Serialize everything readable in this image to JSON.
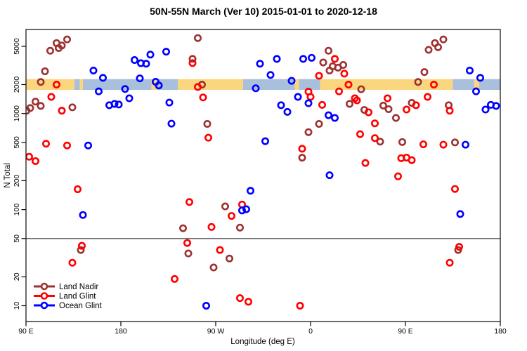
{
  "title": "50N-55N March (Ver 10)   2015-01-01 to 2020-12-18",
  "chart_data": {
    "type": "scatter",
    "title": "50N-55N March (Ver 10)   2015-01-01 to 2020-12-18",
    "xlabel": "Longitude (deg E)",
    "ylabel": "N Total",
    "x_axis": {
      "min": 90,
      "max": 540,
      "ticks": [
        {
          "value": 90,
          "label": "90 E"
        },
        {
          "value": 180,
          "label": "180"
        },
        {
          "value": 270,
          "label": "90 W"
        },
        {
          "value": 360,
          "label": "0"
        },
        {
          "value": 450,
          "label": "90 E"
        },
        {
          "value": 540,
          "label": "180"
        }
      ]
    },
    "y_axis": {
      "scale": "log",
      "min": 7,
      "max": 7500,
      "ticks": [
        10,
        20,
        50,
        100,
        200,
        500,
        1000,
        2000,
        5000
      ]
    },
    "grid": false,
    "legend_position": "bottom-left",
    "reference_line_y": 50,
    "surface_band": {
      "y_center": 2000,
      "y_top": 2280,
      "y_bottom": 1760,
      "land_color": "#FAD67E",
      "ocean_color": "#A9C0DC",
      "segments": [
        {
          "from": 90,
          "to": 136,
          "surface": "land"
        },
        {
          "from": 136,
          "to": 141,
          "surface": "ocean"
        },
        {
          "from": 141,
          "to": 144,
          "surface": "land"
        },
        {
          "from": 144,
          "to": 209,
          "surface": "ocean"
        },
        {
          "from": 209,
          "to": 214,
          "surface": "land"
        },
        {
          "from": 214,
          "to": 234,
          "surface": "ocean"
        },
        {
          "from": 234,
          "to": 296,
          "surface": "land"
        },
        {
          "from": 296,
          "to": 345,
          "surface": "ocean"
        },
        {
          "from": 345,
          "to": 349,
          "surface": "land"
        },
        {
          "from": 349,
          "to": 369,
          "surface": "ocean"
        },
        {
          "from": 369,
          "to": 495,
          "surface": "land"
        },
        {
          "from": 495,
          "to": 515,
          "surface": "ocean"
        },
        {
          "from": 515,
          "to": 520,
          "surface": "land"
        },
        {
          "from": 520,
          "to": 540,
          "surface": "ocean"
        }
      ]
    },
    "series": [
      {
        "name": "Land Nadir",
        "color": "#9E3232",
        "points": [
          [
            113,
            4500
          ],
          [
            119,
            5400
          ],
          [
            124,
            5100
          ],
          [
            129,
            5900
          ],
          [
            121,
            4800
          ],
          [
            108,
            2750
          ],
          [
            104,
            2130
          ],
          [
            99,
            1330
          ],
          [
            104,
            1200
          ],
          [
            94,
            1140
          ],
          [
            90.5,
            1070
          ],
          [
            134,
            1160
          ],
          [
            253,
            6100
          ],
          [
            248,
            3700
          ],
          [
            257,
            2000
          ],
          [
            262,
            780
          ],
          [
            279,
            108
          ],
          [
            293,
            65
          ],
          [
            239,
            64
          ],
          [
            244,
            35
          ],
          [
            283,
            31
          ],
          [
            268,
            25
          ],
          [
            377,
            4500
          ],
          [
            372,
            3400
          ],
          [
            381,
            3100
          ],
          [
            386,
            3000
          ],
          [
            391,
            3200
          ],
          [
            378,
            2800
          ],
          [
            408,
            1790
          ],
          [
            397,
            1260
          ],
          [
            411,
            1090
          ],
          [
            368,
            780
          ],
          [
            358,
            640
          ],
          [
            352,
            347
          ],
          [
            426,
            510
          ],
          [
            447,
            505
          ],
          [
            497,
            500
          ],
          [
            472,
            4600
          ],
          [
            478,
            5400
          ],
          [
            481,
            4900
          ],
          [
            486,
            5900
          ],
          [
            468,
            2700
          ],
          [
            462,
            2130
          ],
          [
            429,
            1210
          ],
          [
            434,
            1110
          ],
          [
            456,
            1290
          ],
          [
            491,
            1220
          ],
          [
            441,
            900
          ],
          [
            500,
            38
          ],
          [
            142,
            38
          ]
        ]
      },
      {
        "name": "Land Glint",
        "color": "#FF0000",
        "points": [
          [
            119,
            2000
          ],
          [
            114,
            1490
          ],
          [
            124,
            1070
          ],
          [
            109,
            485
          ],
          [
            129,
            465
          ],
          [
            93,
            355
          ],
          [
            99,
            320
          ],
          [
            139,
            163
          ],
          [
            143,
            42
          ],
          [
            134,
            28
          ],
          [
            248,
            3350
          ],
          [
            253,
            1890
          ],
          [
            258,
            1470
          ],
          [
            263,
            560
          ],
          [
            245,
            120
          ],
          [
            295,
            113
          ],
          [
            285,
            86
          ],
          [
            266,
            66
          ],
          [
            243,
            45
          ],
          [
            274,
            38
          ],
          [
            231,
            19
          ],
          [
            293,
            12
          ],
          [
            301,
            11
          ],
          [
            383,
            3700
          ],
          [
            392,
            2600
          ],
          [
            368,
            2470
          ],
          [
            396,
            2000
          ],
          [
            358,
            1690
          ],
          [
            360,
            1490
          ],
          [
            387,
            1700
          ],
          [
            402,
            1440
          ],
          [
            404,
            1370
          ],
          [
            371,
            1230
          ],
          [
            415,
            1030
          ],
          [
            421,
            790
          ],
          [
            352,
            430
          ],
          [
            407,
            610
          ],
          [
            421,
            555
          ],
          [
            412,
            306
          ],
          [
            350,
            10
          ],
          [
            477,
            2000
          ],
          [
            471,
            1490
          ],
          [
            433,
            1440
          ],
          [
            451,
            1100
          ],
          [
            460,
            1220
          ],
          [
            492,
            1070
          ],
          [
            467,
            478
          ],
          [
            486,
            474
          ],
          [
            446,
            343
          ],
          [
            451,
            348
          ],
          [
            456,
            327
          ],
          [
            443,
            222
          ],
          [
            497,
            164
          ],
          [
            501,
            41
          ],
          [
            492,
            28
          ]
        ]
      },
      {
        "name": "Ocean Glint",
        "color": "#0000FF",
        "points": [
          [
            154,
            2800
          ],
          [
            163,
            2350
          ],
          [
            159,
            1700
          ],
          [
            169,
            1220
          ],
          [
            174,
            1260
          ],
          [
            178,
            1240
          ],
          [
            184,
            1800
          ],
          [
            188,
            1440
          ],
          [
            193,
            3600
          ],
          [
            199,
            3340
          ],
          [
            198,
            2320
          ],
          [
            223,
            4400
          ],
          [
            208,
            4100
          ],
          [
            204,
            3300
          ],
          [
            312,
            3300
          ],
          [
            213,
            2140
          ],
          [
            216,
            1960
          ],
          [
            226,
            1300
          ],
          [
            308,
            1830
          ],
          [
            228,
            785
          ],
          [
            149,
            465
          ],
          [
            144,
            88
          ],
          [
            303,
            157
          ],
          [
            299,
            101
          ],
          [
            295,
            98
          ],
          [
            317,
            515
          ],
          [
            378,
            228
          ],
          [
            328,
            3700
          ],
          [
            353,
            3700
          ],
          [
            361,
            3800
          ],
          [
            322,
            2520
          ],
          [
            342,
            2190
          ],
          [
            348,
            1490
          ],
          [
            358,
            1280
          ],
          [
            332,
            1220
          ],
          [
            338,
            1040
          ],
          [
            377,
            960
          ],
          [
            383,
            900
          ],
          [
            511,
            2800
          ],
          [
            521,
            2350
          ],
          [
            517,
            1700
          ],
          [
            526,
            1100
          ],
          [
            531,
            1230
          ],
          [
            536,
            1200
          ],
          [
            507,
            474
          ],
          [
            502,
            90
          ],
          [
            261,
            10
          ]
        ]
      }
    ]
  }
}
